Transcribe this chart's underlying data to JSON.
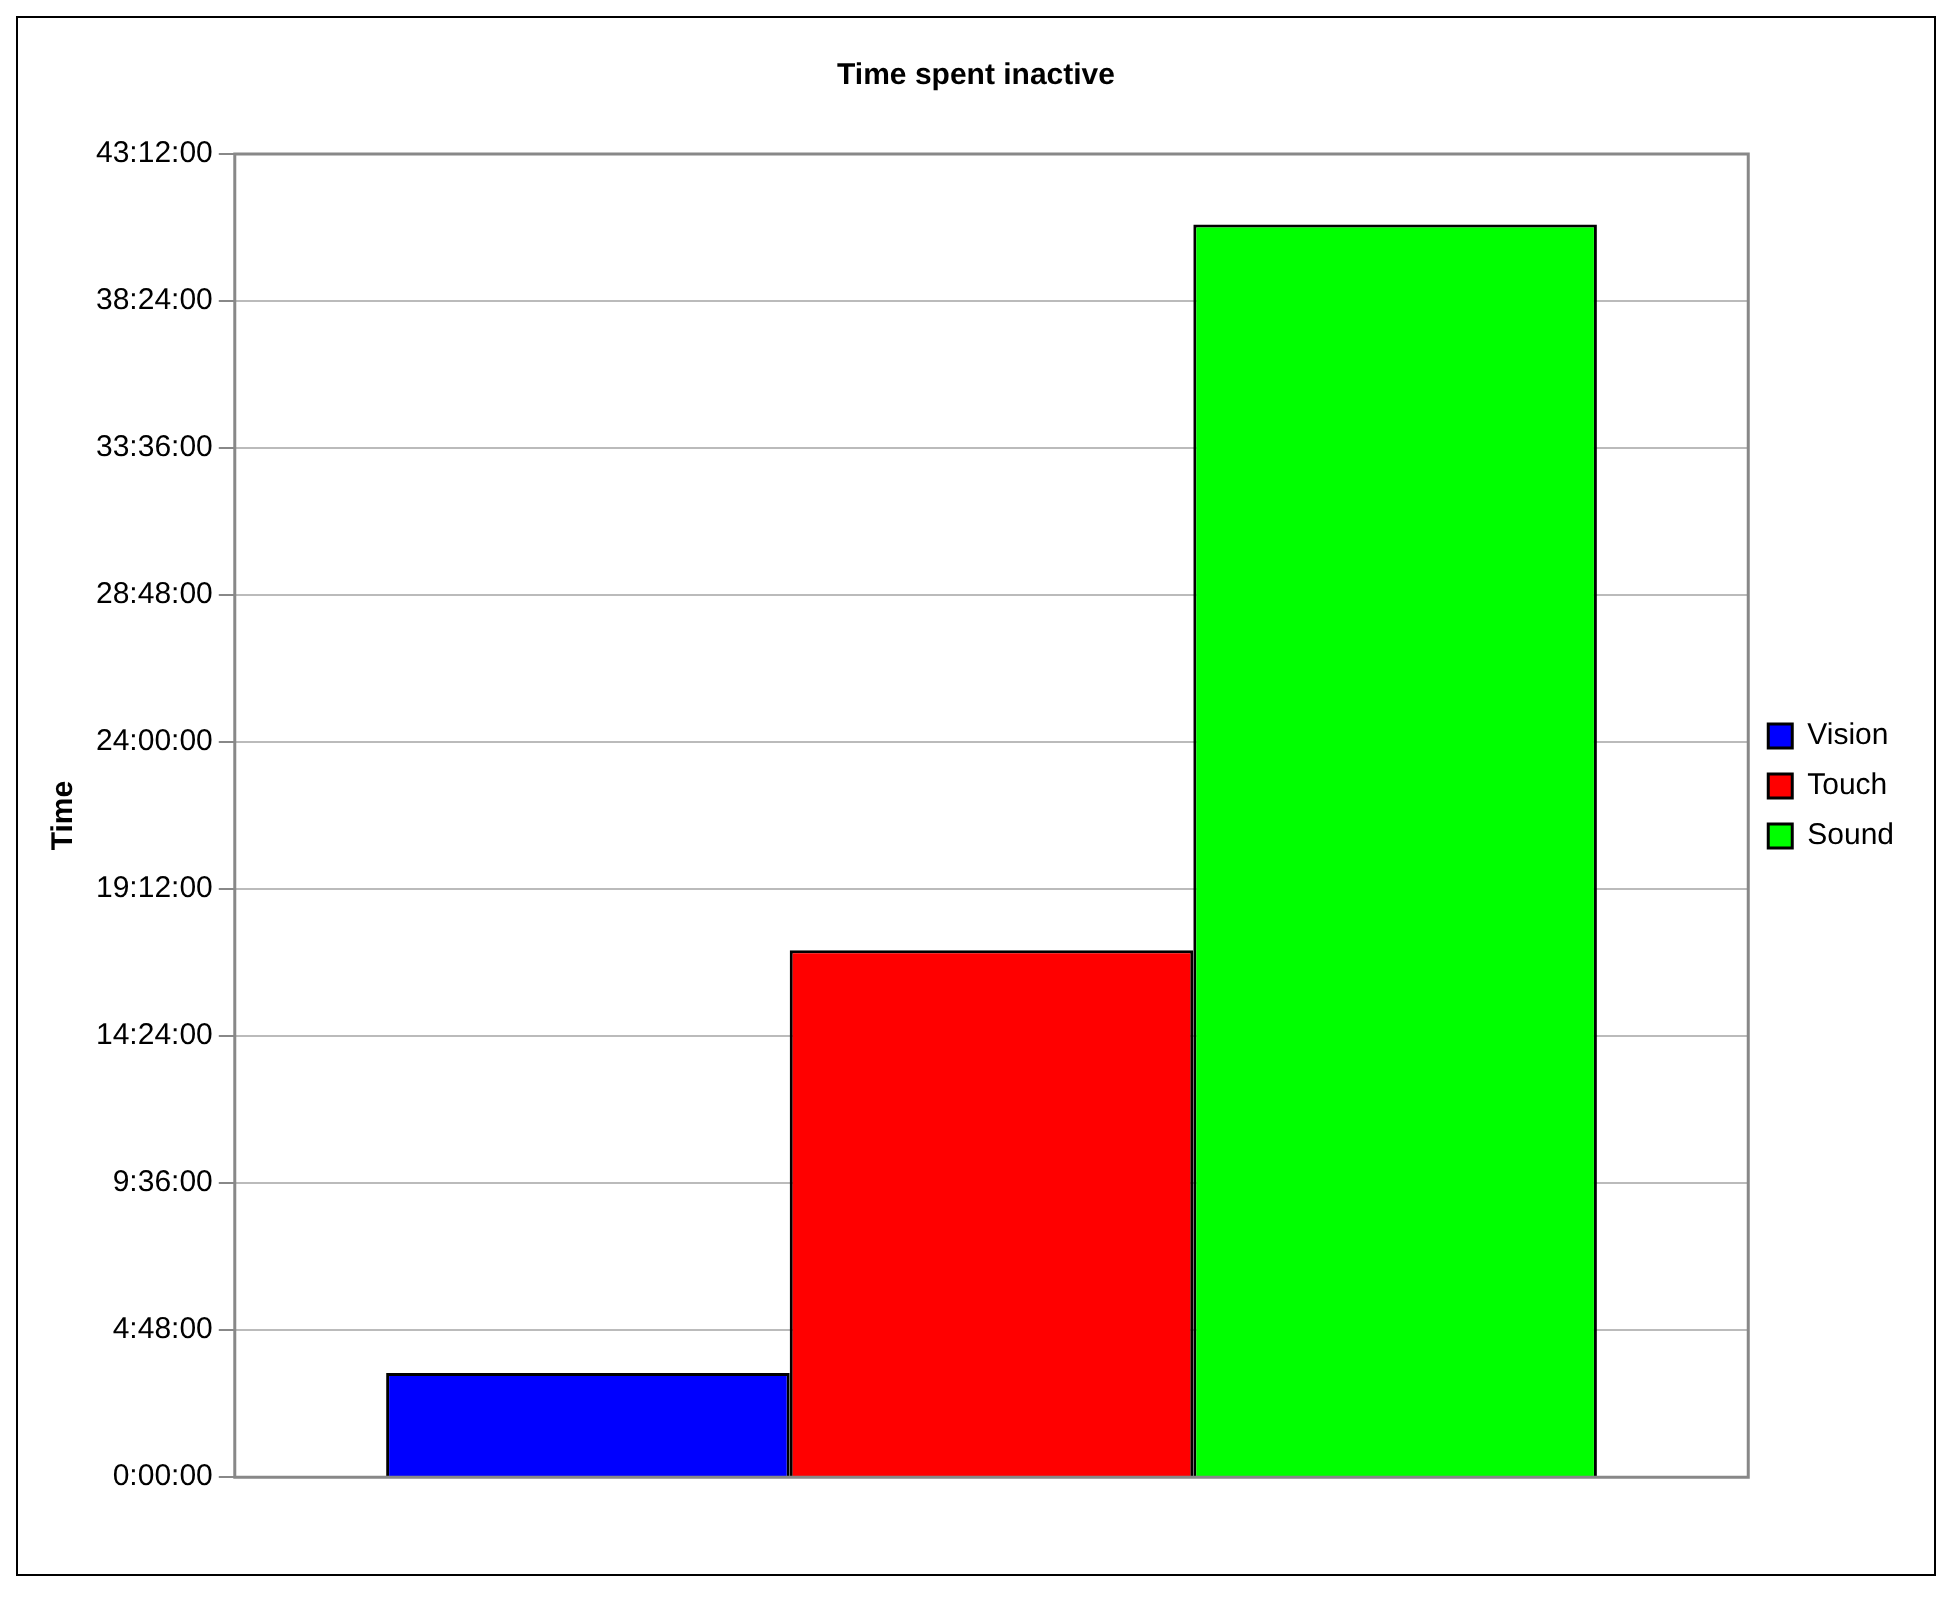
{
  "chart_data": {
    "type": "bar",
    "title": "Time spent inactive",
    "ylabel": "Time",
    "categories": [
      null
    ],
    "series": [
      {
        "name": "Vision",
        "color": "#0000ff",
        "values": [
          3.4
        ]
      },
      {
        "name": "Touch",
        "color": "#ff0000",
        "values": [
          17.2
        ]
      },
      {
        "name": "Sound",
        "color": "#00ff00",
        "values": [
          40.9
        ]
      }
    ],
    "ylim": [
      0,
      43.2
    ],
    "yticks": [
      {
        "value": 0,
        "label": "0:00:00"
      },
      {
        "value": 4.8,
        "label": "4:48:00"
      },
      {
        "value": 9.6,
        "label": "9:36:00"
      },
      {
        "value": 14.4,
        "label": "14:24:00"
      },
      {
        "value": 19.2,
        "label": "19:12:00"
      },
      {
        "value": 24,
        "label": "24:00:00"
      },
      {
        "value": 28.8,
        "label": "28:48:00"
      },
      {
        "value": 33.6,
        "label": "33:36:00"
      },
      {
        "value": 38.4,
        "label": "38:24:00"
      },
      {
        "value": 43.2,
        "label": "43:12:00"
      }
    ],
    "grid": "y",
    "legend": "right"
  }
}
